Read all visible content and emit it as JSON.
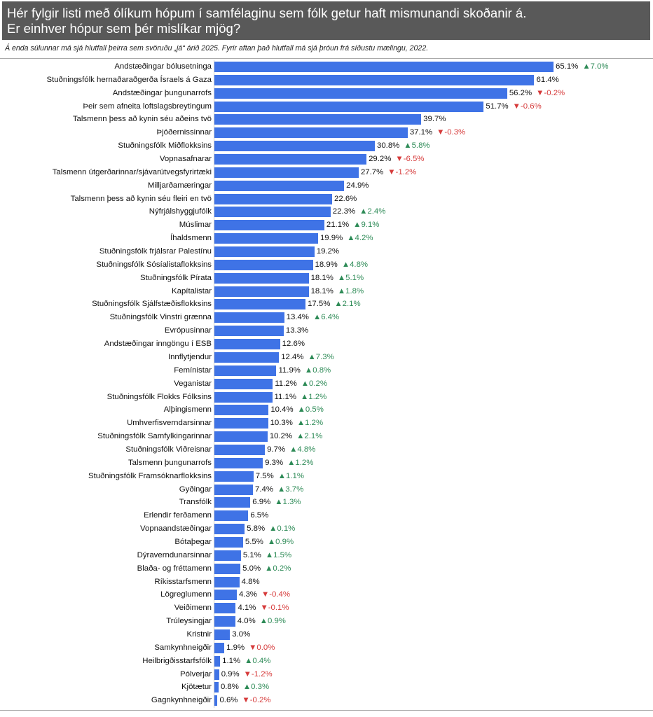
{
  "header": {
    "title_line1": "Hér fylgir listi með ólíkum hópum í samfélaginu sem fólk getur haft mismunandi skoðanir á.",
    "title_line2": "Er einhver hópur sem þér mislíkar mjög?",
    "subtitle": "Á enda súlunnar má sjá hlutfall þeirra sem svöruðu „já“ árið 2025. Fyrir aftan það hlutfall má sjá þróun frá síðustu mælingu, 2022."
  },
  "colors": {
    "bar": "#3f73e6",
    "up": "#2e8b57",
    "down": "#d63a3a",
    "title_bg": "#595959"
  },
  "chart_data": {
    "type": "bar",
    "orientation": "horizontal",
    "unit": "%",
    "xlim": [
      0,
      70
    ],
    "categories": [
      "Andstæðingar bólusetninga",
      "Stuðningsfólk hernaðaraðgerða Ísraels á Gaza",
      "Andstæðingar þungunarrofs",
      "Þeir sem afneita loftslagsbreytingum",
      "Talsmenn þess að kynin séu aðeins tvö",
      "Þjóðernissinnar",
      "Stuðningsfólk Miðflokksins",
      "Vopnasafnarar",
      "Talsmenn útgerðarinnar/sjávarútvegsfyrirtæki",
      "Milljarðamæringar",
      "Talsmenn þess að kynin séu fleiri en tvö",
      "Nýfrjálshyggjufólk",
      "Múslimar",
      "Íhaldsmenn",
      "Stuðningsfólk frjálsrar Palestínu",
      "Stuðningsfólk Sósíalistaflokksins",
      "Stuðningsfólk Pírata",
      "Kapítalistar",
      "Stuðningsfólk Sjálfstæðisflokksins",
      "Stuðningsfólk Vinstri grænna",
      "Evrópusinnar",
      "Andstæðingar inngöngu í ESB",
      "Innflytjendur",
      "Femínistar",
      "Veganistar",
      "Stuðningsfólk Flokks Fólksins",
      "Alþingismenn",
      "Umhverfisverndarsinnar",
      "Stuðningsfólk Samfylkingarinnar",
      "Stuðningsfólk Viðreisnar",
      "Talsmenn þungunarrofs",
      "Stuðningsfólk Framsóknarflokksins",
      "Gyðingar",
      "Transfólk",
      "Erlendir ferðamenn",
      "Vopnaandstæðingar",
      "Bótaþegar",
      "Dýraverndunarsinnar",
      "Blaða- og fréttamenn",
      "Ríkisstarfsmenn",
      "Lögreglumenn",
      "Veiðimenn",
      "Trúleysingjar",
      "Kristnir",
      "Samkynhneigðir",
      "Heilbrigðisstarfsfólk",
      "Pólverjar",
      "Kjötætur",
      "Gagnkynhneigðir"
    ],
    "values": [
      65.1,
      61.4,
      56.2,
      51.7,
      39.7,
      37.1,
      30.8,
      29.2,
      27.7,
      24.9,
      22.6,
      22.3,
      21.1,
      19.9,
      19.2,
      18.9,
      18.1,
      18.1,
      17.5,
      13.4,
      13.3,
      12.6,
      12.4,
      11.9,
      11.2,
      11.1,
      10.4,
      10.3,
      10.2,
      9.7,
      9.3,
      7.5,
      7.4,
      6.9,
      6.5,
      5.8,
      5.5,
      5.1,
      5.0,
      4.8,
      4.3,
      4.1,
      4.0,
      3.0,
      1.9,
      1.1,
      0.9,
      0.8,
      0.6
    ],
    "value_labels": [
      "65.1%",
      "61.4%",
      "56.2%",
      "51.7%",
      "39.7%",
      "37.1%",
      "30.8%",
      "29.2%",
      "27.7%",
      "24.9%",
      "22.6%",
      "22.3%",
      "21.1%",
      "19.9%",
      "19.2%",
      "18.9%",
      "18.1%",
      "18.1%",
      "17.5%",
      "13.4%",
      "13.3%",
      "12.6%",
      "12.4%",
      "11.9%",
      "11.2%",
      "11.1%",
      "10.4%",
      "10.3%",
      "10.2%",
      "9.7%",
      "9.3%",
      "7.5%",
      "7.4%",
      "6.9%",
      "6.5%",
      "5.8%",
      "5.5%",
      "5.1%",
      "5.0%",
      "4.8%",
      "4.3%",
      "4.1%",
      "4.0%",
      "3.0%",
      "1.9%",
      "1.1%",
      "0.9%",
      "0.8%",
      "0.6%"
    ],
    "change_labels": [
      "▲7.0%",
      "",
      "▼-0.2%",
      "▼-0.6%",
      "",
      "▼-0.3%",
      "▲5.8%",
      "▼-6.5%",
      "▼-1.2%",
      "",
      "",
      "▲2.4%",
      "▲9.1%",
      "▲4.2%",
      "",
      "▲4.8%",
      "▲5.1%",
      "▲1.8%",
      "▲2.1%",
      "▲6.4%",
      "",
      "",
      "▲7.3%",
      "▲0.8%",
      "▲0.2%",
      "▲1.2%",
      "▲0.5%",
      "▲1.2%",
      "▲2.1%",
      "▲4.8%",
      "▲1.2%",
      "▲1.1%",
      "▲3.7%",
      "▲1.3%",
      "",
      "▲0.1%",
      "▲0.9%",
      "▲1.5%",
      "▲0.2%",
      "",
      "▼-0.4%",
      "▼-0.1%",
      "▲0.9%",
      "",
      "▼0.0%",
      "▲0.4%",
      "▼-1.2%",
      "▲0.3%",
      "▼-0.2%"
    ],
    "change_direction": [
      "up",
      "",
      "down",
      "down",
      "",
      "down",
      "up",
      "down",
      "down",
      "",
      "",
      "up",
      "up",
      "up",
      "",
      "up",
      "up",
      "up",
      "up",
      "up",
      "",
      "",
      "up",
      "up",
      "up",
      "up",
      "up",
      "up",
      "up",
      "up",
      "up",
      "up",
      "up",
      "up",
      "",
      "up",
      "up",
      "up",
      "up",
      "",
      "down",
      "down",
      "up",
      "",
      "down",
      "up",
      "down",
      "up",
      "down"
    ]
  }
}
